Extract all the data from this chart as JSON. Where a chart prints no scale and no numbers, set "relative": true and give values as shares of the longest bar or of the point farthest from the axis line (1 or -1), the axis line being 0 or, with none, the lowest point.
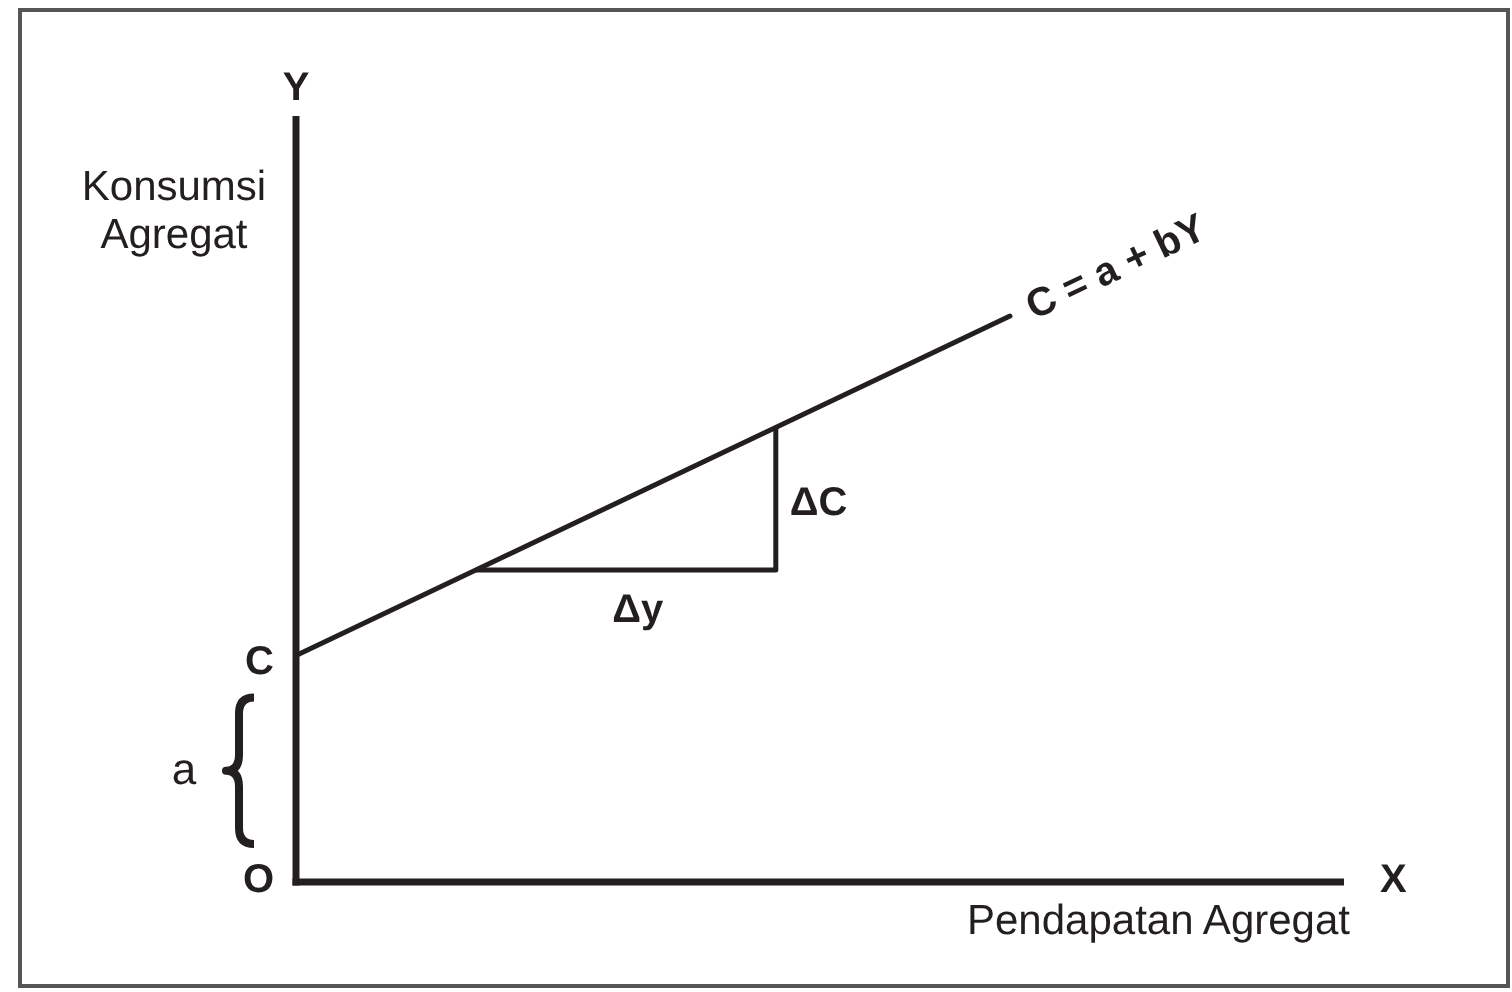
{
  "chart_data": {
    "type": "line",
    "relative": true,
    "categories": [
      null,
      null
    ],
    "series": [
      {
        "name": "C = a + bY",
        "color": "#231f20",
        "values": [
          0.4,
          1
        ]
      }
    ],
    "xlabel": "Pendapatan Agregat",
    "ylabel": "Konsumsi Agregat",
    "annotations": [
      "Y",
      "C",
      "a",
      "O",
      "X",
      "Δy",
      "ΔC"
    ]
  }
}
